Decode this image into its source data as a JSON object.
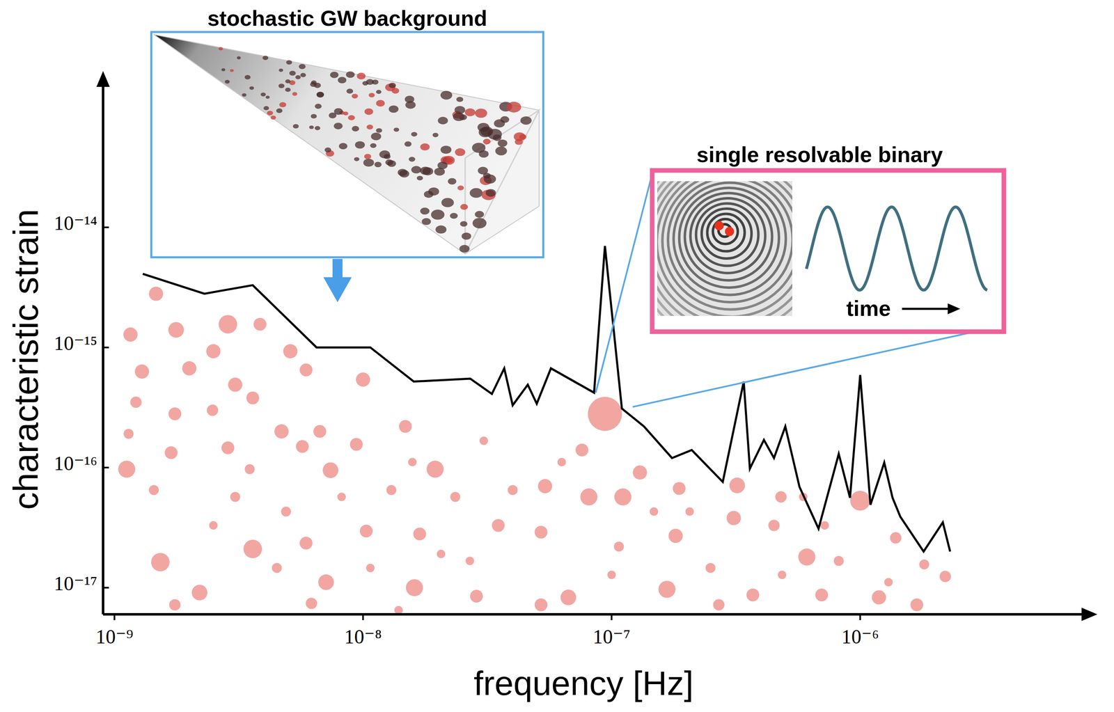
{
  "chart_data": {
    "type": "line",
    "x_label": "frequency [Hz]",
    "y_label": "characteristic strain",
    "log": true,
    "grid": false,
    "xlim": [
      9e-10,
      9e-06
    ],
    "ylim": [
      6e-18,
      2e-13
    ],
    "xticks": [
      {
        "value": 1e-09,
        "label": "10⁻⁹"
      },
      {
        "value": 1e-08,
        "label": "10⁻⁸"
      },
      {
        "value": 1e-07,
        "label": "10⁻⁷"
      },
      {
        "value": 1e-06,
        "label": "10⁻⁶"
      }
    ],
    "yticks": [
      {
        "value": 1e-17,
        "label": "10⁻¹⁷"
      },
      {
        "value": 1e-16,
        "label": "10⁻¹⁶"
      },
      {
        "value": 1e-15,
        "label": "10⁻¹⁵"
      },
      {
        "value": 1e-14,
        "label": "10⁻¹⁴"
      }
    ],
    "series": [
      {
        "type": "line",
        "color": "#000000",
        "x": [
          1.3e-09,
          2.3e-09,
          3.6e-09,
          6.5e-09,
          1.07e-08,
          1.6e-08,
          2.7e-08,
          3.3e-08,
          3.7e-08,
          4e-08,
          4.6e-08,
          5e-08,
          5.7e-08,
          8.5e-08,
          9.4e-08,
          1.1e-07,
          1.35e-07,
          1.75e-07,
          2.1e-07,
          2.8e-07,
          3.4e-07,
          3.6e-07,
          4.1e-07,
          4.5e-07,
          5e-07,
          5.7e-07,
          6.8e-07,
          8.2e-07,
          9.1e-07,
          1e-06,
          1.1e-06,
          1.25e-06,
          1.35e-06,
          1.45e-06,
          1.8e-06,
          2.15e-06,
          2.3e-06
        ],
        "values": [
          4.1e-15,
          2.8e-15,
          3.3e-15,
          1e-15,
          1e-15,
          5.2e-16,
          5.5e-16,
          4.1e-16,
          6.7e-16,
          3.3e-16,
          4.9e-16,
          3.4e-16,
          6.7e-16,
          4.2e-16,
          7e-15,
          3.1e-16,
          2.2e-16,
          1.2e-16,
          1.4e-16,
          7.6e-17,
          5.2e-16,
          9.8e-17,
          1.7e-16,
          1.2e-16,
          2.2e-16,
          6.9e-17,
          3.1e-17,
          1.3e-16,
          5.6e-17,
          5.9e-16,
          4.9e-17,
          1.1e-16,
          5.6e-17,
          3.9e-17,
          2e-17,
          3.5e-17,
          2e-17
        ]
      },
      {
        "type": "scatter",
        "color": "#f2a6a2",
        "marker": "circle",
        "x": [
          1.47e-09,
          1.16e-09,
          1.77e-09,
          2.86e-09,
          3.85e-09,
          2.5e-09,
          5.1e-09,
          1.29e-09,
          2e-09,
          3.06e-09,
          5.9e-09,
          1e-08,
          1.22e-09,
          1.75e-09,
          2.48e-09,
          3.6e-09,
          4.7e-09,
          6.7e-09,
          1.48e-08,
          1.12e-09,
          1.69e-09,
          2.86e-09,
          5.7e-09,
          9.4e-09,
          1.95e-08,
          7.4e-09,
          9.4e-08,
          7.6e-08,
          1.3e-07,
          5.4e-08,
          8.1e-08,
          1.11e-07,
          1.87e-07,
          3.2e-07,
          1e-06,
          4.8e-07,
          1.53e-09,
          3.6e-09,
          5.9e-09,
          1.03e-08,
          1.69e-08,
          3.5e-08,
          5.2e-08,
          1.81e-07,
          3.1e-07,
          4.5e-07,
          6.1e-07,
          1.39e-06,
          2.2e-09,
          7.1e-09,
          1.61e-08,
          2.86e-08,
          6.7e-08,
          1.67e-07,
          3.7e-07,
          7e-07,
          1.19e-06,
          2.2e-06,
          1.75e-09,
          6.2e-09,
          5.2e-08,
          2.7e-07,
          1.69e-06,
          3.06e-09,
          4.9e-09,
          1.3e-08,
          2.35e-08,
          4e-08,
          1.07e-07,
          2.5e-07,
          8.2e-07,
          1.81e-06,
          4.5e-09,
          1.07e-08,
          2.06e-08,
          2.06e-07,
          7.2e-07,
          2.5e-09,
          1.44e-09,
          1.14e-09,
          3.5e-09,
          8.2e-09,
          1.58e-08,
          3.06e-08,
          6.3e-08,
          1.48e-07,
          5.9e-07,
          1.3e-06,
          2.69e-08,
          1e-07,
          4.85e-07,
          1.39e-08
        ],
        "values": [
          2.8e-15,
          1.28e-15,
          1.4e-15,
          1.56e-15,
          1.56e-15,
          9.3e-16,
          9.3e-16,
          6.3e-16,
          6.7e-16,
          4.9e-16,
          6.5e-16,
          5.4e-16,
          3.5e-16,
          2.8e-16,
          3e-16,
          3.8e-16,
          2e-16,
          2e-16,
          2.2e-16,
          9.7e-17,
          1.33e-16,
          1.46e-16,
          1.5e-16,
          1.56e-16,
          9.7e-17,
          9.5e-17,
          2.8e-16,
          1.4e-16,
          9.1e-17,
          7e-17,
          5.7e-17,
          5.7e-17,
          6.7e-17,
          7.1e-17,
          5.3e-17,
          5.7e-17,
          1.63e-17,
          2.1e-17,
          2.35e-17,
          2.96e-17,
          2.8e-17,
          3.3e-17,
          2.9e-17,
          2.7e-17,
          3.8e-17,
          3.3e-17,
          1.8e-17,
          2.6e-17,
          9.1e-18,
          1.11e-17,
          1e-17,
          8.5e-18,
          8.3e-18,
          9.7e-18,
          8.7e-18,
          8.7e-18,
          8.3e-18,
          1.24e-17,
          7.2e-18,
          7.4e-18,
          7.2e-18,
          7.2e-18,
          7.2e-18,
          5.7e-17,
          4.3e-17,
          6.5e-17,
          5.7e-17,
          6.5e-17,
          2.2e-17,
          1.46e-17,
          1.67e-17,
          1.56e-17,
          1.46e-17,
          1.46e-17,
          1.91e-17,
          4.3e-17,
          3.3e-17,
          3.3e-17,
          6.5e-17,
          1.91e-16,
          9.7e-17,
          5.7e-17,
          1.11e-16,
          1.67e-16,
          1.11e-16,
          4.3e-17,
          5.7e-17,
          1.11e-17,
          1.67e-17,
          1.28e-17,
          1.28e-17,
          6.5e-18
        ],
        "sizes": [
          10,
          10,
          11,
          13,
          9,
          10,
          10,
          10,
          10,
          10,
          9,
          10,
          8,
          9,
          8,
          9,
          10,
          9,
          9,
          12,
          9,
          9,
          9,
          9,
          12,
          11,
          24,
          9,
          10,
          10,
          12,
          12,
          9,
          11,
          14,
          8,
          13,
          13,
          9,
          9,
          9,
          9,
          9,
          10,
          10,
          8,
          12,
          8,
          11,
          11,
          12,
          9,
          11,
          12,
          9,
          9,
          10,
          8,
          8,
          8,
          9,
          8,
          9,
          7,
          7,
          7,
          7,
          7,
          7,
          7,
          7,
          7,
          7,
          6,
          6,
          6,
          6,
          6,
          7,
          7,
          7,
          6,
          6,
          6,
          6,
          6,
          6,
          6,
          6,
          6,
          6,
          6
        ]
      }
    ],
    "annotations": [
      {
        "text": "stochastic GW background"
      },
      {
        "text": "single resolvable binary"
      },
      {
        "text": "time"
      }
    ]
  }
}
